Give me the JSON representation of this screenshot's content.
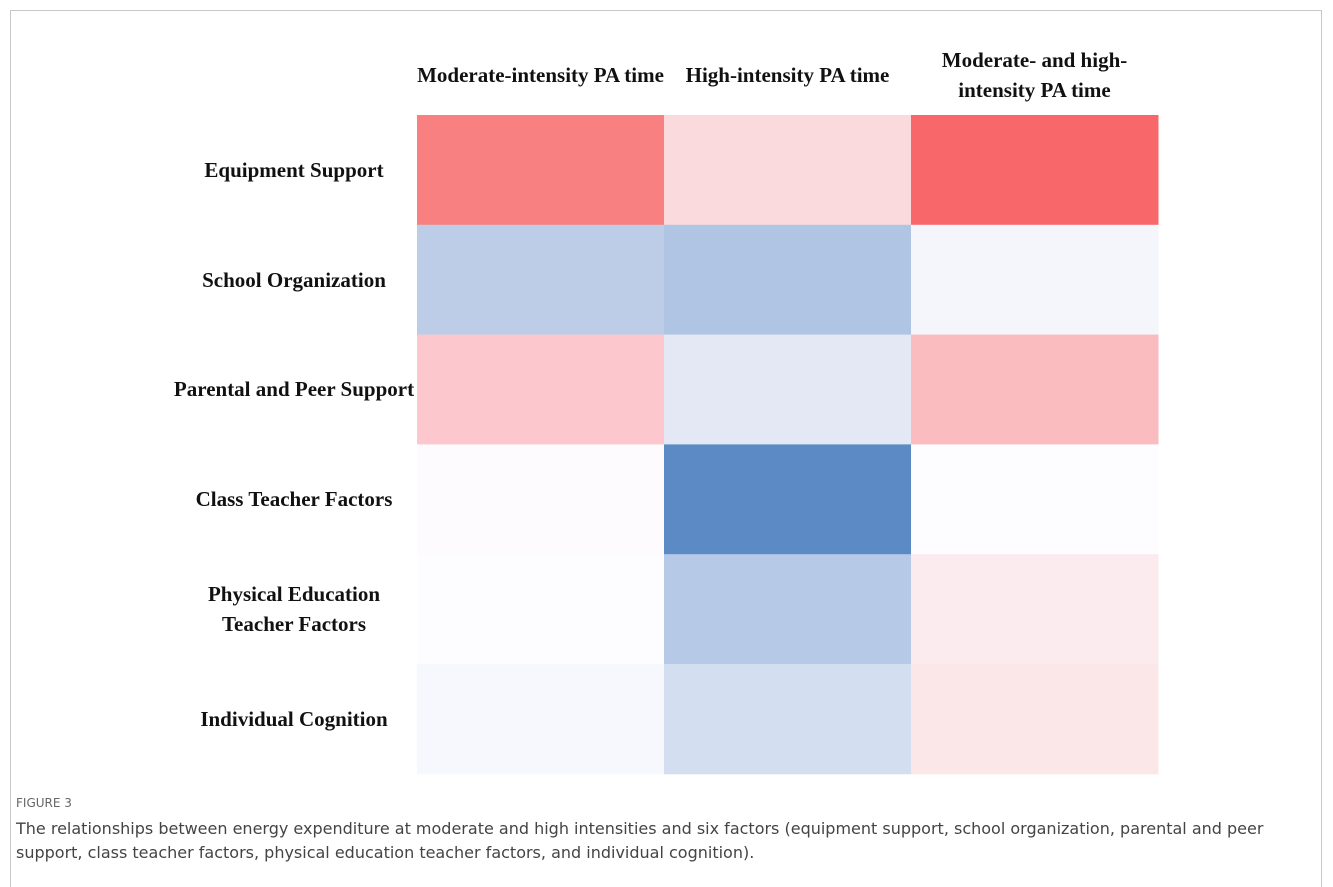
{
  "chart_data": {
    "type": "heatmap",
    "columns": [
      "Moderate-intensity PA time",
      "High-intensity PA time",
      "Moderate- and high-intensity PA time"
    ],
    "rows": [
      "Equipment Support",
      "School Organization",
      "Parental and Peer Support",
      "Class Teacher Factors",
      "Physical Education Teacher Factors",
      "Individual Cognition"
    ],
    "cell_colors": [
      [
        "#f98080",
        "#fbdadd",
        "#f8686b"
      ],
      [
        "#bdcde8",
        "#b0c5e4",
        "#f5f6fb"
      ],
      [
        "#fdc8cd",
        "#e3e8f4",
        "#fabcbf"
      ],
      [
        "#fdfbfd",
        "#5b8ac5",
        "#fdfdff"
      ],
      [
        "#fdfdff",
        "#b6c9e6",
        "#fcebee"
      ],
      [
        "#f6f8fd",
        "#d3dff1",
        "#fce7e8"
      ]
    ],
    "figure_label": "FIGURE 3",
    "caption": "The relationships between energy expenditure at moderate and high intensities and six factors (equipment support, school organization, parental and peer support, class teacher factors, physical education teacher factors, and individual cognition)."
  }
}
